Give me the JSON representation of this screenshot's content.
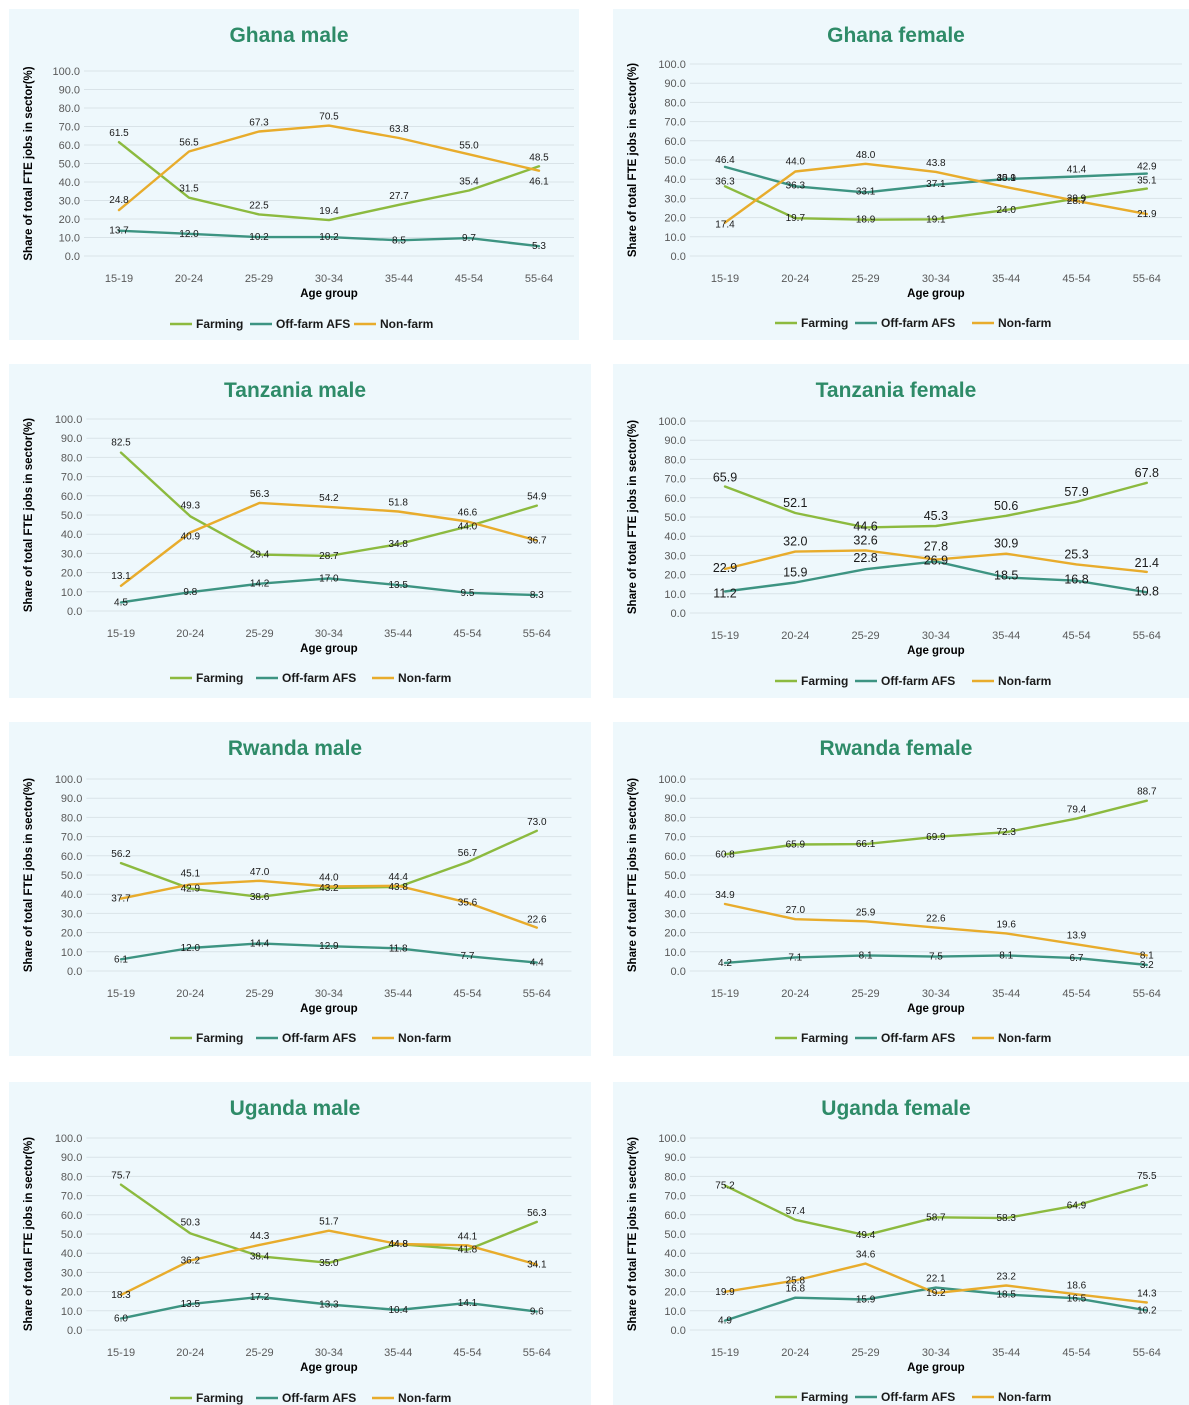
{
  "colors": {
    "Farming": "#8cba3f",
    "Off-farm AFS": "#3d9482",
    "Non-farm": "#e8ac2c",
    "title": "#2e8b68",
    "grid": "#d9e3e8",
    "panel_bg": "#eef8fc"
  },
  "chart_data": [
    {
      "type": "line",
      "title": "Ghana male",
      "xlabel": "Age group",
      "ylabel": "Share of total FTE jobs in sector(%)",
      "ylim": [
        0,
        100
      ],
      "categories": [
        "15-19",
        "20-24",
        "25-29",
        "30-34",
        "35-44",
        "45-54",
        "55-64"
      ],
      "yticks": [
        "0.0",
        "10.0",
        "20.0",
        "30.0",
        "40.0",
        "50.0",
        "60.0",
        "70.0",
        "80.0",
        "90.0",
        "100.0"
      ],
      "legend": [
        "Farming",
        "Off-farm AFS",
        "Non-farm"
      ],
      "series": [
        {
          "name": "Farming",
          "values": [
            61.5,
            31.5,
            22.5,
            19.4,
            27.7,
            35.4,
            48.5
          ]
        },
        {
          "name": "Off-farm AFS",
          "values": [
            13.7,
            12.0,
            10.2,
            10.2,
            8.5,
            9.7,
            5.3
          ]
        },
        {
          "name": "Non-farm",
          "values": [
            24.8,
            56.5,
            67.3,
            70.5,
            63.8,
            55.0,
            46.1
          ]
        }
      ]
    },
    {
      "type": "line",
      "title": "Ghana female",
      "xlabel": "Age group",
      "ylabel": "Share of total FTE jobs in sector(%)",
      "ylim": [
        0,
        100
      ],
      "categories": [
        "15-19",
        "20-24",
        "25-29",
        "30-34",
        "35-44",
        "45-54",
        "55-64"
      ],
      "yticks": [
        "0.0",
        "10.0",
        "20.0",
        "30.0",
        "40.0",
        "50.0",
        "60.0",
        "70.0",
        "80.0",
        "90.0",
        "100.0"
      ],
      "legend": [
        "Farming",
        "Off-farm AFS",
        "Non-farm"
      ],
      "series": [
        {
          "name": "Farming",
          "values": [
            36.3,
            19.7,
            18.9,
            19.1,
            24.0,
            29.9,
            35.1
          ]
        },
        {
          "name": "Off-farm AFS",
          "values": [
            46.4,
            36.3,
            33.1,
            37.1,
            40.1,
            41.4,
            42.9
          ]
        },
        {
          "name": "Non-farm",
          "values": [
            17.4,
            44.0,
            48.0,
            43.8,
            35.9,
            28.7,
            21.9
          ]
        }
      ]
    },
    {
      "type": "line",
      "title": "Tanzania male",
      "xlabel": "Age group",
      "ylabel": "Share of total FTE jobs in sector(%)",
      "ylim": [
        0,
        100
      ],
      "categories": [
        "15-19",
        "20-24",
        "25-29",
        "30-34",
        "35-44",
        "45-54",
        "55-64"
      ],
      "yticks": [
        "0.0",
        "10.0",
        "20.0",
        "30.0",
        "40.0",
        "50.0",
        "60.0",
        "70.0",
        "80.0",
        "90.0",
        "100.0"
      ],
      "legend": [
        "Farming",
        "Off-farm AFS",
        "Non-farm"
      ],
      "series": [
        {
          "name": "Farming",
          "values": [
            82.5,
            49.3,
            29.4,
            28.7,
            34.8,
            44.0,
            54.9
          ]
        },
        {
          "name": "Off-farm AFS",
          "values": [
            4.5,
            9.8,
            14.2,
            17.0,
            13.5,
            9.5,
            8.3
          ]
        },
        {
          "name": "Non-farm",
          "values": [
            13.1,
            40.9,
            56.3,
            54.2,
            51.8,
            46.6,
            36.7
          ]
        }
      ]
    },
    {
      "type": "line",
      "title": "Tanzania female",
      "xlabel": "Age group",
      "ylabel": "Share of total FTE jobs in sector(%)",
      "ylim": [
        0,
        100
      ],
      "categories": [
        "15-19",
        "20-24",
        "25-29",
        "30-34",
        "35-44",
        "45-54",
        "55-64"
      ],
      "yticks": [
        "0.0",
        "10.0",
        "20.0",
        "30.0",
        "40.0",
        "50.0",
        "60.0",
        "70.0",
        "80.0",
        "90.0",
        "100.0"
      ],
      "legend": [
        "Farming",
        "Off-farm AFS",
        "Non-farm"
      ],
      "series": [
        {
          "name": "Farming",
          "values": [
            65.9,
            52.1,
            44.6,
            45.3,
            50.6,
            57.9,
            67.8
          ]
        },
        {
          "name": "Off-farm AFS",
          "values": [
            11.2,
            15.9,
            22.8,
            26.9,
            18.5,
            16.8,
            10.8
          ]
        },
        {
          "name": "Non-farm",
          "values": [
            22.9,
            32.0,
            32.6,
            27.8,
            30.9,
            25.3,
            21.4
          ]
        }
      ]
    },
    {
      "type": "line",
      "title": "Rwanda male",
      "xlabel": "Age group",
      "ylabel": "Share of total FTE jobs in sector(%)",
      "ylim": [
        0,
        100
      ],
      "categories": [
        "15-19",
        "20-24",
        "25-29",
        "30-34",
        "35-44",
        "45-54",
        "55-64"
      ],
      "yticks": [
        "0.0",
        "10.0",
        "20.0",
        "30.0",
        "40.0",
        "50.0",
        "60.0",
        "70.0",
        "80.0",
        "90.0",
        "100.0"
      ],
      "legend": [
        "Farming",
        "Off-farm AFS",
        "Non-farm"
      ],
      "series": [
        {
          "name": "Farming",
          "values": [
            56.2,
            42.9,
            38.6,
            43.2,
            43.8,
            56.7,
            73.0
          ]
        },
        {
          "name": "Off-farm AFS",
          "values": [
            6.1,
            12.0,
            14.4,
            12.9,
            11.8,
            7.7,
            4.4
          ]
        },
        {
          "name": "Non-farm",
          "values": [
            37.7,
            45.1,
            47.0,
            44.0,
            44.4,
            35.6,
            22.6
          ]
        }
      ]
    },
    {
      "type": "line",
      "title": "Rwanda female",
      "xlabel": "Age group",
      "ylabel": "Share of total FTE jobs in sector(%)",
      "ylim": [
        0,
        100
      ],
      "categories": [
        "15-19",
        "20-24",
        "25-29",
        "30-34",
        "35-44",
        "45-54",
        "55-64"
      ],
      "yticks": [
        "0.0",
        "10.0",
        "20.0",
        "30.0",
        "40.0",
        "50.0",
        "60.0",
        "70.0",
        "80.0",
        "90.0",
        "100.0"
      ],
      "legend": [
        "Farming",
        "Off-farm AFS",
        "Non-farm"
      ],
      "series": [
        {
          "name": "Farming",
          "values": [
            60.8,
            65.9,
            66.1,
            69.9,
            72.3,
            79.4,
            88.7
          ]
        },
        {
          "name": "Off-farm AFS",
          "values": [
            4.2,
            7.1,
            8.1,
            7.5,
            8.1,
            6.7,
            3.2
          ]
        },
        {
          "name": "Non-farm",
          "values": [
            34.9,
            27.0,
            25.9,
            22.6,
            19.6,
            13.9,
            8.1
          ]
        }
      ]
    },
    {
      "type": "line",
      "title": "Uganda male",
      "xlabel": "Age group",
      "ylabel": "Share of total FTE jobs in sector(%)",
      "ylim": [
        0,
        100
      ],
      "categories": [
        "15-19",
        "20-24",
        "25-29",
        "30-34",
        "35-44",
        "45-54",
        "55-64"
      ],
      "yticks": [
        "0.0",
        "10.0",
        "20.0",
        "30.0",
        "40.0",
        "50.0",
        "60.0",
        "70.0",
        "80.0",
        "90.0",
        "100.0"
      ],
      "legend": [
        "Farming",
        "Off-farm AFS",
        "Non-farm"
      ],
      "series": [
        {
          "name": "Farming",
          "values": [
            75.7,
            50.3,
            38.4,
            35.0,
            44.8,
            41.8,
            56.3
          ]
        },
        {
          "name": "Off-farm AFS",
          "values": [
            6.0,
            13.5,
            17.2,
            13.3,
            10.4,
            14.1,
            9.6
          ]
        },
        {
          "name": "Non-farm",
          "values": [
            18.3,
            36.2,
            44.3,
            51.7,
            44.8,
            44.1,
            34.1
          ]
        }
      ]
    },
    {
      "type": "line",
      "title": "Uganda female",
      "xlabel": "Age group",
      "ylabel": "Share of total FTE jobs in sector(%)",
      "ylim": [
        0,
        100
      ],
      "categories": [
        "15-19",
        "20-24",
        "25-29",
        "30-34",
        "35-44",
        "45-54",
        "55-64"
      ],
      "yticks": [
        "0.0",
        "10.0",
        "20.0",
        "30.0",
        "40.0",
        "50.0",
        "60.0",
        "70.0",
        "80.0",
        "90.0",
        "100.0"
      ],
      "legend": [
        "Farming",
        "Off-farm AFS",
        "Non-farm"
      ],
      "series": [
        {
          "name": "Farming",
          "values": [
            75.2,
            57.4,
            49.4,
            58.7,
            58.3,
            64.9,
            75.5
          ]
        },
        {
          "name": "Off-farm AFS",
          "values": [
            4.9,
            16.8,
            15.9,
            22.1,
            18.5,
            16.5,
            10.2
          ]
        },
        {
          "name": "Non-farm",
          "values": [
            19.9,
            25.8,
            34.6,
            19.2,
            23.2,
            18.6,
            14.3
          ]
        }
      ]
    }
  ]
}
